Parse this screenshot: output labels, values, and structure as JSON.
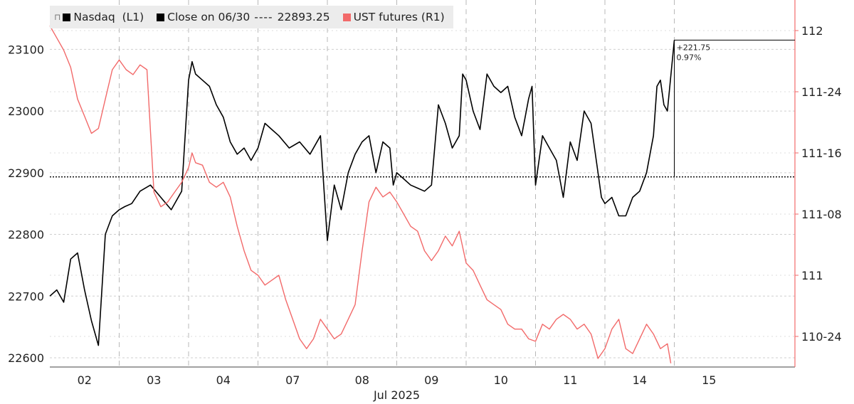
{
  "chart_data": {
    "type": "line",
    "title": "",
    "xlabel": "Jul 2025",
    "left_ylabel": "",
    "right_ylabel": "",
    "x_categories": [
      "02",
      "03",
      "04",
      "07",
      "08",
      "09",
      "10",
      "11",
      "14",
      "15"
    ],
    "left_axis": {
      "range": [
        22585,
        23180
      ],
      "ticks": [
        22600,
        22700,
        22800,
        22900,
        23000,
        23100
      ],
      "tick_labels": [
        "22600",
        "22700",
        "22800",
        "22900",
        "23000",
        "23100"
      ]
    },
    "right_axis": {
      "range": [
        110.625,
        112.125
      ],
      "ticks": [
        110.75,
        111.0,
        111.25,
        111.5,
        111.75,
        112.0
      ],
      "tick_labels": [
        "110-24",
        "111",
        "111-08",
        "111-16",
        "111-24",
        "112"
      ]
    },
    "legend": {
      "pin": "⊓",
      "items": [
        {
          "label": "Nasdaq  (L1)",
          "color": "#000000"
        },
        {
          "label": "Close on 06/30",
          "dashes": "----",
          "value": "22893.25",
          "color": "#000000"
        },
        {
          "label": "UST futures (R1)",
          "color": "#f26a6a"
        }
      ]
    },
    "reference_line": {
      "name": "Close on 06/30",
      "value": 22893.25,
      "style": "dotted",
      "color": "#000000"
    },
    "annotation": {
      "change": "+221.75",
      "percent": "0.97%",
      "from": 22893.25,
      "to": 23115
    },
    "colors": {
      "nasdaq": "#000000",
      "ust": "#f26a6a"
    },
    "grid": true,
    "series": [
      {
        "name": "Nasdaq",
        "axis": "left",
        "color": "#000000",
        "x": [
          0,
          0.1,
          0.2,
          0.3,
          0.4,
          0.5,
          0.6,
          0.7,
          0.8,
          0.9,
          1.0,
          1.08,
          1.18,
          1.3,
          1.45,
          1.6,
          1.75,
          1.9,
          2.0,
          2.05,
          2.1,
          2.2,
          2.3,
          2.4,
          2.5,
          2.6,
          2.7,
          2.8,
          2.9,
          2.95,
          3.0,
          3.1,
          3.2,
          3.3,
          3.45,
          3.6,
          3.75,
          3.9,
          4.0,
          4.1,
          4.2,
          4.3,
          4.4,
          4.5,
          4.6,
          4.7,
          4.8,
          4.9,
          4.95,
          5.0,
          5.1,
          5.2,
          5.3,
          5.4,
          5.5,
          5.6,
          5.7,
          5.8,
          5.9,
          5.95,
          6.0,
          6.1,
          6.2,
          6.3,
          6.4,
          6.5,
          6.6,
          6.7,
          6.8,
          6.9,
          6.95,
          7.0,
          7.1,
          7.2,
          7.3,
          7.4,
          7.5,
          7.6,
          7.7,
          7.8,
          7.9,
          7.95,
          8.0,
          8.1,
          8.2,
          8.3,
          8.4,
          8.5,
          8.6,
          8.7,
          8.75,
          8.8,
          8.85,
          8.9,
          9.0
        ],
        "values": [
          22700,
          22710,
          22690,
          22760,
          22770,
          22710,
          22660,
          22620,
          22800,
          22830,
          22840,
          22845,
          22850,
          22870,
          22880,
          22860,
          22840,
          22870,
          23050,
          23080,
          23060,
          23050,
          23040,
          23010,
          22990,
          22950,
          22930,
          22940,
          22920,
          22930,
          22940,
          22980,
          22970,
          22960,
          22940,
          22950,
          22930,
          22960,
          22790,
          22880,
          22840,
          22900,
          22930,
          22950,
          22960,
          22900,
          22950,
          22940,
          22880,
          22900,
          22890,
          22880,
          22875,
          22870,
          22880,
          23010,
          22980,
          22940,
          22960,
          23060,
          23050,
          23000,
          22970,
          23060,
          23040,
          23030,
          23040,
          22990,
          22960,
          23020,
          23040,
          22880,
          22960,
          22940,
          22920,
          22860,
          22950,
          22920,
          23000,
          22980,
          22900,
          22860,
          22850,
          22860,
          22830,
          22830,
          22860,
          22870,
          22900,
          22960,
          23040,
          23050,
          23010,
          23000,
          23115
        ]
      },
      {
        "name": "UST futures",
        "axis": "right",
        "color": "#f26a6a",
        "x": [
          0,
          0.1,
          0.2,
          0.3,
          0.4,
          0.5,
          0.6,
          0.7,
          0.8,
          0.9,
          1.0,
          1.1,
          1.2,
          1.3,
          1.4,
          1.5,
          1.6,
          1.7,
          1.8,
          1.9,
          2.0,
          2.05,
          2.1,
          2.2,
          2.3,
          2.4,
          2.5,
          2.6,
          2.7,
          2.8,
          2.9,
          3.0,
          3.1,
          3.2,
          3.3,
          3.4,
          3.5,
          3.6,
          3.7,
          3.8,
          3.9,
          4.0,
          4.1,
          4.2,
          4.3,
          4.4,
          4.5,
          4.6,
          4.7,
          4.8,
          4.9,
          5.0,
          5.1,
          5.2,
          5.3,
          5.4,
          5.5,
          5.6,
          5.7,
          5.8,
          5.9,
          6.0,
          6.1,
          6.2,
          6.3,
          6.4,
          6.5,
          6.6,
          6.7,
          6.8,
          6.9,
          7.0,
          7.1,
          7.2,
          7.3,
          7.4,
          7.5,
          7.6,
          7.7,
          7.8,
          7.9,
          8.0,
          8.1,
          8.2,
          8.3,
          8.4,
          8.5,
          8.6,
          8.7,
          8.8,
          8.9,
          8.95
        ],
        "values": [
          112.02,
          111.97,
          111.92,
          111.85,
          111.72,
          111.65,
          111.58,
          111.6,
          111.72,
          111.84,
          111.88,
          111.84,
          111.82,
          111.86,
          111.84,
          111.34,
          111.28,
          111.3,
          111.34,
          111.38,
          111.44,
          111.5,
          111.46,
          111.45,
          111.38,
          111.36,
          111.38,
          111.32,
          111.2,
          111.1,
          111.02,
          111.0,
          110.96,
          110.98,
          111.0,
          110.9,
          110.82,
          110.74,
          110.7,
          110.74,
          110.82,
          110.78,
          110.74,
          110.76,
          110.82,
          110.88,
          111.1,
          111.3,
          111.36,
          111.32,
          111.34,
          111.3,
          111.25,
          111.2,
          111.18,
          111.1,
          111.06,
          111.1,
          111.16,
          111.12,
          111.18,
          111.05,
          111.02,
          110.96,
          110.9,
          110.88,
          110.86,
          110.8,
          110.78,
          110.78,
          110.74,
          110.73,
          110.8,
          110.78,
          110.82,
          110.84,
          110.82,
          110.78,
          110.8,
          110.76,
          110.66,
          110.7,
          110.78,
          110.82,
          110.7,
          110.68,
          110.74,
          110.8,
          110.76,
          110.7,
          110.72,
          110.64
        ]
      }
    ]
  }
}
